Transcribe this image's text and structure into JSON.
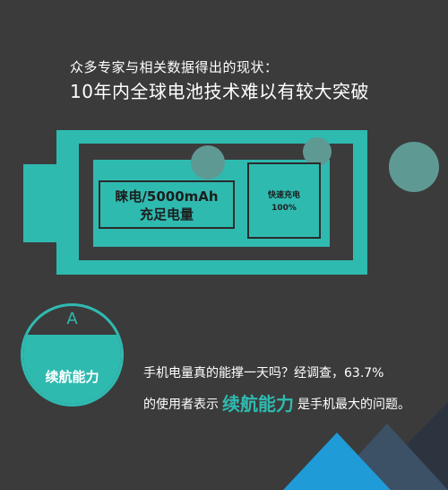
{
  "headline": {
    "subtitle": "众多专家与相关数据得出的现状：",
    "title": "10年内全球电池技术难以有较大突破"
  },
  "battery": {
    "capacity_label_line1": "睐电/5000mAh",
    "capacity_label_line2": "充足电量",
    "quick_charge_line1": "快速充电",
    "quick_charge_line2": "100%"
  },
  "endurance": {
    "letter": "A",
    "label": "续航能力"
  },
  "statement": {
    "line1": "手机电量真的能撑一天吗？经调查，63.7%",
    "line2_before": "的使用者表示",
    "line2_highlight": "续航能力",
    "line2_after": "是手机最大的问题。"
  },
  "colors": {
    "background": "#3b3b3b",
    "accent": "#2fbab0",
    "bubble": "#5f9993",
    "corner_blue": "#1f9bd8"
  }
}
